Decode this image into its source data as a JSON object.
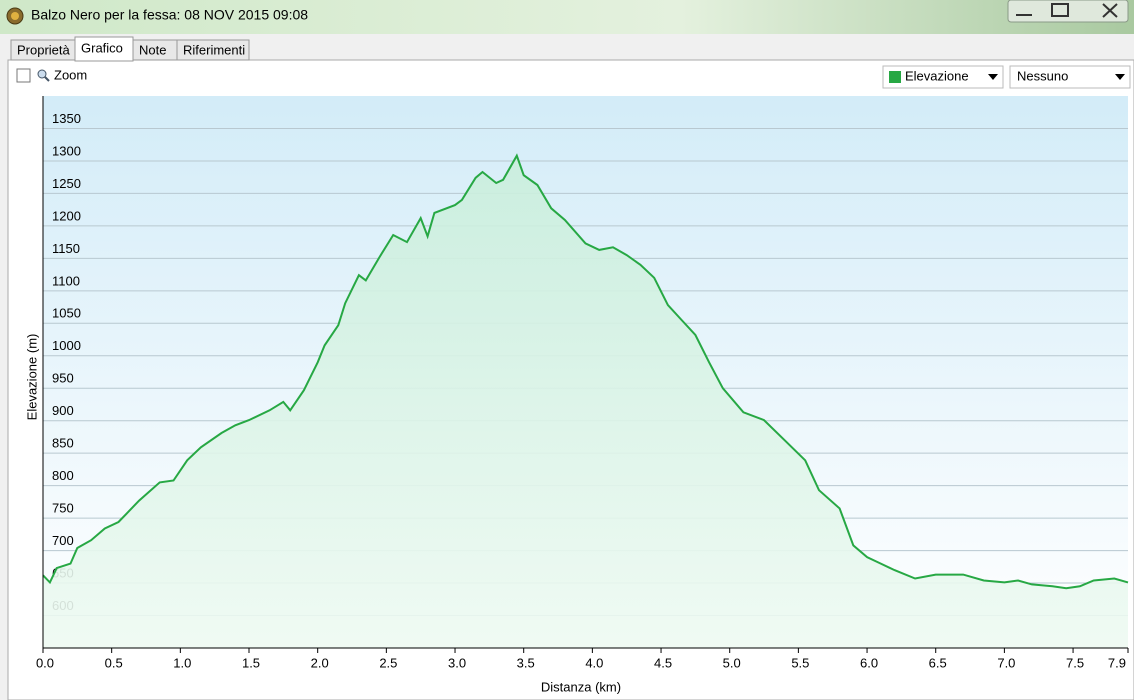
{
  "window": {
    "title": "Balzo Nero per la fessa: 08 NOV 2015 09:08"
  },
  "tabs": [
    "Proprietà",
    "Grafico",
    "Note",
    "Riferimenti"
  ],
  "toolbar": {
    "zoom": "Zoom",
    "compare_select": "Nessuno"
  },
  "chart_data": {
    "type": "line",
    "x_label": "Distanza (km)",
    "y_label": "Elevazione (m)",
    "x": [
      0.0,
      0.05,
      0.1,
      0.2,
      0.25,
      0.35,
      0.45,
      0.55,
      0.7,
      0.85,
      0.95,
      1.05,
      1.15,
      1.3,
      1.4,
      1.5,
      1.65,
      1.75,
      1.8,
      1.9,
      2.0,
      2.05,
      2.15,
      2.2,
      2.3,
      2.35,
      2.45,
      2.55,
      2.65,
      2.75,
      2.8,
      2.85,
      3.0,
      3.05,
      3.15,
      3.2,
      3.3,
      3.35,
      3.45,
      3.5,
      3.6,
      3.7,
      3.8,
      3.95,
      4.05,
      4.15,
      4.25,
      4.35,
      4.45,
      4.55,
      4.65,
      4.75,
      4.85,
      4.95,
      5.1,
      5.25,
      5.4,
      5.55,
      5.65,
      5.8,
      5.9,
      6.0,
      6.1,
      6.2,
      6.35,
      6.5,
      6.7,
      6.85,
      7.0,
      7.1,
      7.2,
      7.35,
      7.45,
      7.55,
      7.65,
      7.8,
      7.9
    ],
    "series": [
      {
        "name": "Elevazione",
        "color": "#27a844",
        "values": [
          662,
          651,
          673,
          680,
          704,
          716,
          734,
          744,
          777,
          805,
          808,
          839,
          859,
          881,
          893,
          901,
          916,
          929,
          916,
          947,
          990,
          1016,
          1047,
          1081,
          1124,
          1116,
          1152,
          1186,
          1175,
          1212,
          1184,
          1220,
          1232,
          1240,
          1274,
          1283,
          1266,
          1271,
          1308,
          1278,
          1263,
          1227,
          1209,
          1173,
          1163,
          1167,
          1155,
          1140,
          1120,
          1078,
          1055,
          1032,
          990,
          950,
          913,
          901,
          870,
          839,
          793,
          765,
          708,
          690,
          680,
          670,
          657,
          663,
          663,
          654,
          651,
          654,
          648,
          645,
          642,
          645,
          654,
          657,
          651
        ]
      }
    ],
    "xlim": [
      0,
      7.9
    ],
    "ylim": [
      550,
      1400
    ],
    "xticks": [
      {
        "value": 0,
        "label": "0.0"
      },
      0.5,
      {
        "value": 1,
        "label": "1.0"
      },
      1.5,
      {
        "value": 2,
        "label": "2.0"
      },
      2.5,
      {
        "value": 3,
        "label": "3.0"
      },
      3.5,
      {
        "value": 4,
        "label": "4.0"
      },
      4.5,
      {
        "value": 5,
        "label": "5.0"
      },
      5.5,
      {
        "value": 6,
        "label": "6.0"
      },
      6.5,
      {
        "value": 7,
        "label": "7.0"
      },
      7.5,
      7.9
    ],
    "yticks": [
      600,
      650,
      700,
      750,
      800,
      850,
      900,
      950,
      1000,
      1050,
      1100,
      1150,
      1200,
      1250,
      1300,
      1350
    ],
    "grid": true
  }
}
